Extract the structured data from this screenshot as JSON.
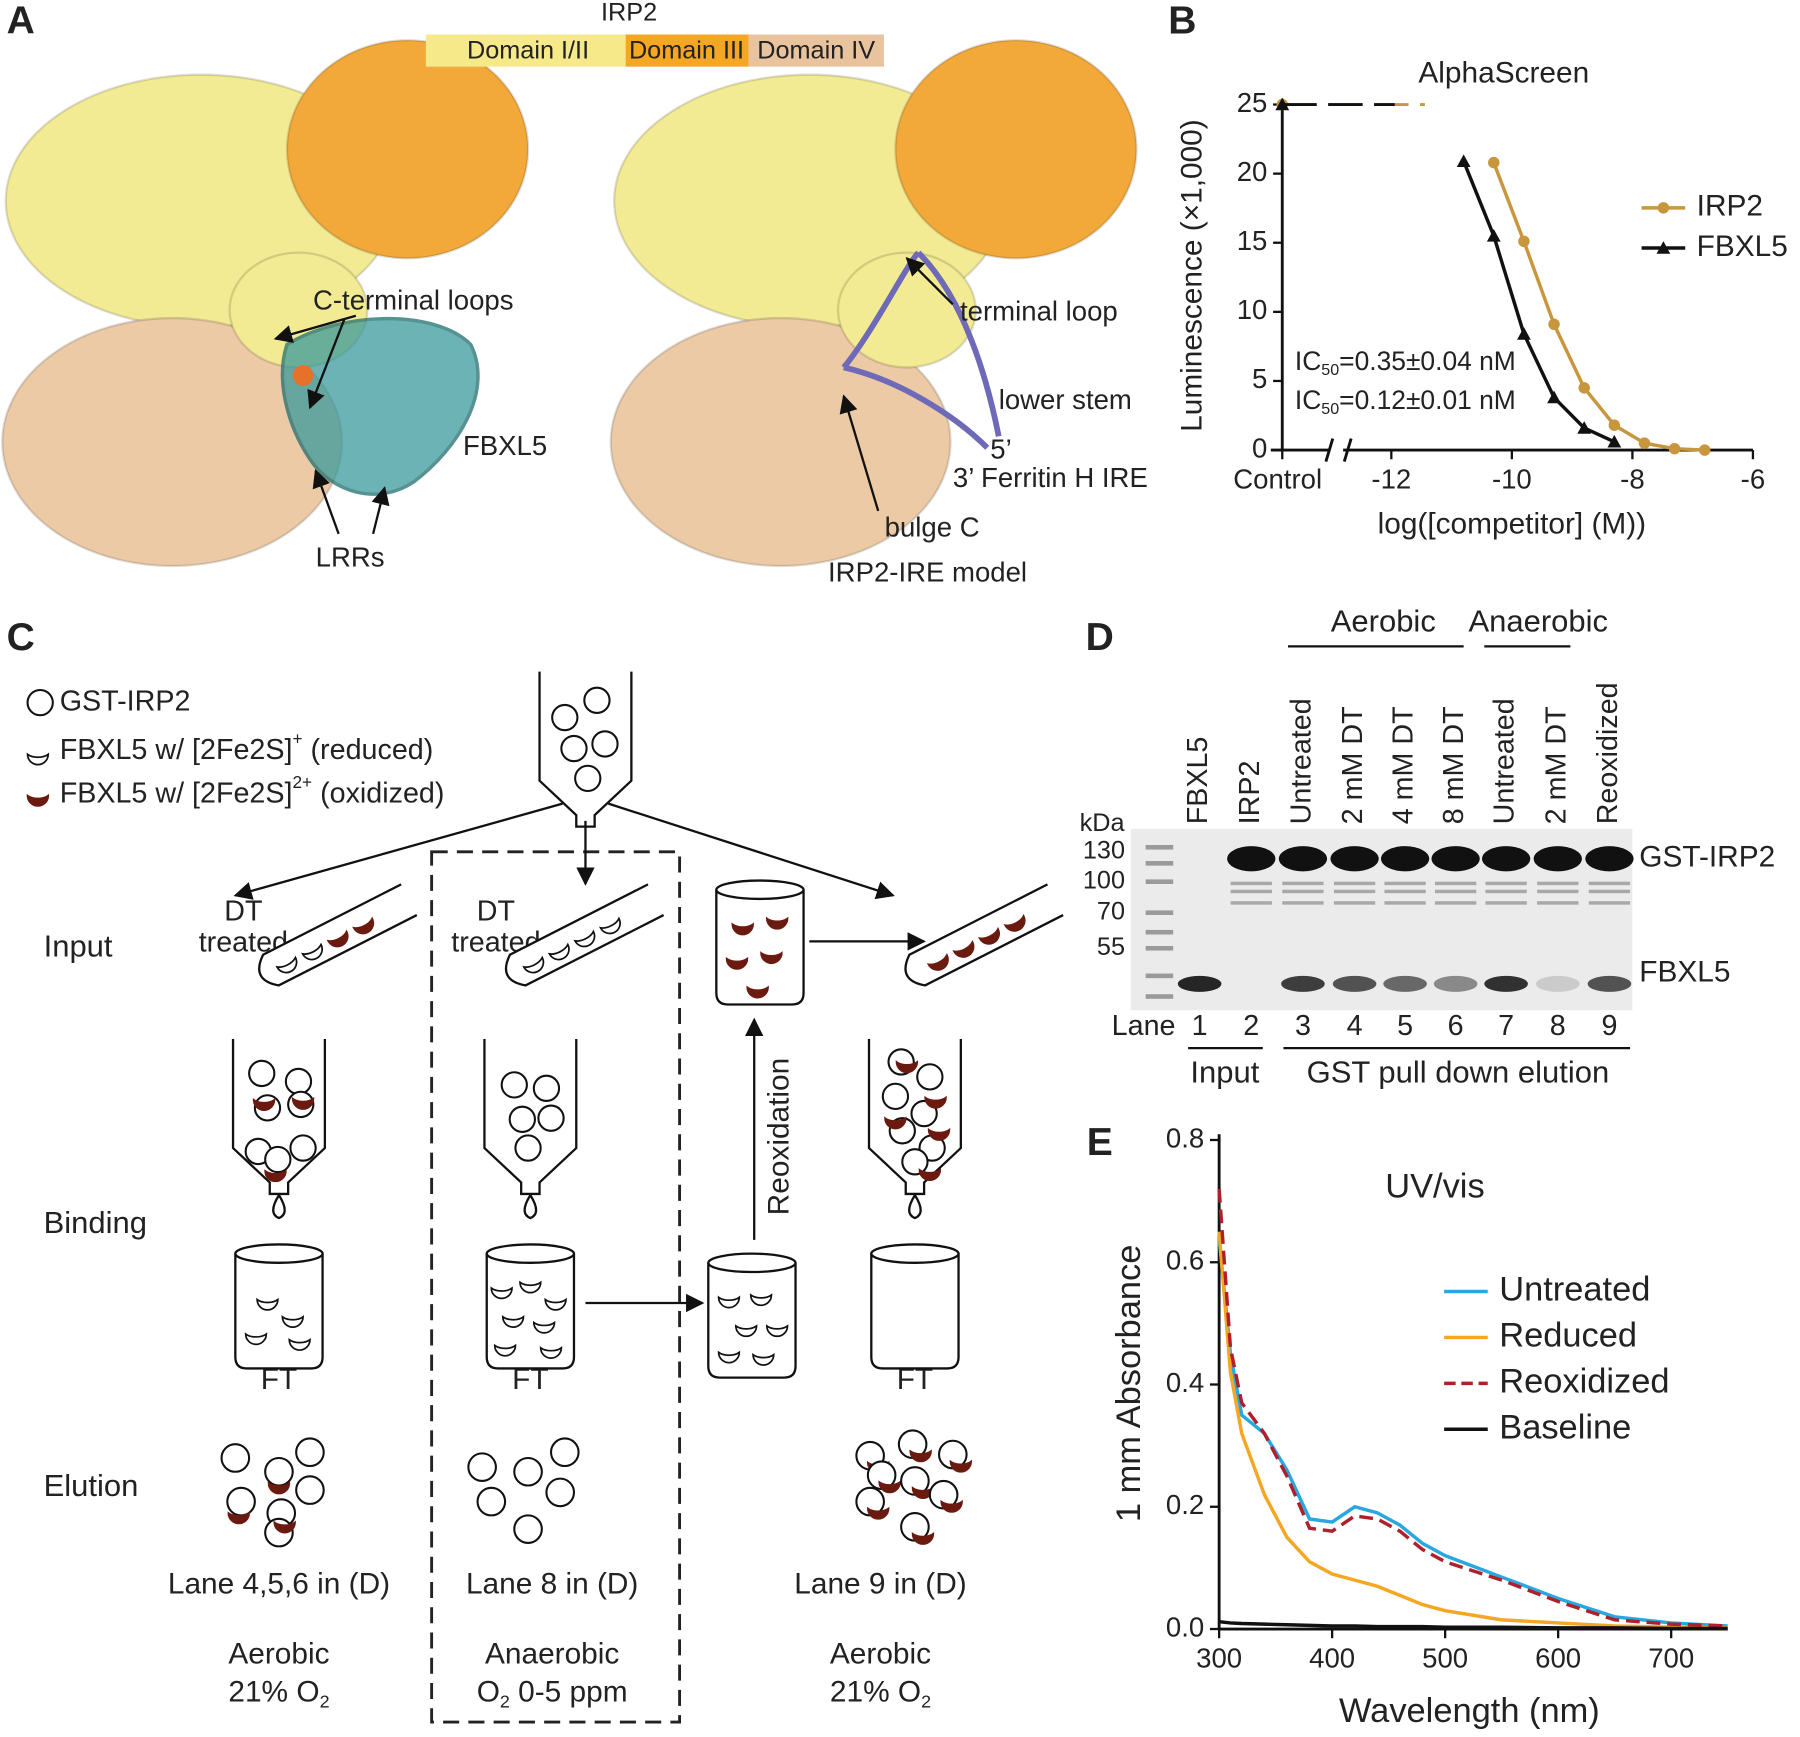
{
  "panel_labels": [
    "A",
    "B",
    "C",
    "D",
    "E"
  ],
  "panel_a": {
    "protein": "IRP2",
    "domains": [
      "Domain I/II",
      "Domain III",
      "Domain IV"
    ],
    "domain_colors": [
      "#f5e98a",
      "#f5a623",
      "#e8c39e"
    ],
    "left_labels": [
      "C-terminal loops",
      "FBXL5",
      "LRRs"
    ],
    "right_labels": [
      "terminal loop",
      "lower stem",
      "5’",
      "3’ Ferritin H IRE",
      "bulge C"
    ],
    "caption": "IRP2-IRE model"
  },
  "panel_c": {
    "legend": [
      {
        "before": "GST-IRP2"
      },
      {
        "before": "FBXL5 w/ [2Fe2S]",
        "sup": "+",
        "after": " (reduced)"
      },
      {
        "before": "FBXL5 w/ [2Fe2S]",
        "sup": "2+",
        "after": " (oxidized)"
      }
    ],
    "rows": [
      "Input",
      "Binding",
      "Elution"
    ],
    "dt_treated": [
      "DT",
      "treated"
    ],
    "ft": "FT",
    "reoxidation": "Reoxidation",
    "lanes": [
      "Lane 4,5,6 in (D)",
      "Lane 8 in (D)",
      "Lane 9 in (D)"
    ],
    "conditions": [
      {
        "name": "Aerobic",
        "before": "21% O",
        "sub": "2"
      },
      {
        "name": "Anaerobic",
        "before": "O",
        "sub": "2",
        "after": " 0-5 ppm"
      },
      {
        "name": "Aerobic",
        "before": "21% O",
        "sub": "2"
      }
    ]
  },
  "panel_d": {
    "groups": [
      "Aerobic",
      "Anaerobic"
    ],
    "lanes": [
      "FBXL5",
      "IRP2",
      "Untreated",
      "2 mM DT",
      "4 mM DT",
      "8 mM DT",
      "Untreated",
      "2 mM DT",
      "Reoxidized"
    ],
    "unit": "kDa",
    "markers": [
      "130",
      "100",
      "70",
      "55"
    ],
    "bands": [
      "GST-IRP2",
      "FBXL5"
    ],
    "lane_label": "Lane",
    "lane_numbers": [
      "1",
      "2",
      "3",
      "4",
      "5",
      "6",
      "7",
      "8",
      "9"
    ],
    "sections": [
      "Input",
      "GST pull down elution"
    ]
  },
  "chart_data": [
    {
      "type": "line",
      "title": "AlphaScreen",
      "xlabel": "log([competitor] (M))",
      "ylabel": "Luminescence (×1,000)",
      "control_label": "Control",
      "xlim": [
        -12.8,
        -6
      ],
      "xticks": [
        -12,
        -10,
        -8,
        -6
      ],
      "ylim": [
        0,
        25
      ],
      "yticks": [
        0,
        5,
        10,
        15,
        20,
        25
      ],
      "legend": "right",
      "series": [
        {
          "name": "IRP2",
          "color": "#c8963c",
          "marker": "circle",
          "control": 25,
          "x": [
            -10.3,
            -9.8,
            -9.3,
            -8.8,
            -8.3,
            -7.8,
            -7.3,
            -6.8
          ],
          "values": [
            20.8,
            15.1,
            9.1,
            4.5,
            1.8,
            0.5,
            0.1,
            0
          ]
        },
        {
          "name": "FBXL5",
          "color": "#111111",
          "marker": "triangle",
          "control": 25,
          "x": [
            -10.8,
            -10.3,
            -9.8,
            -9.3,
            -8.8,
            -8.3
          ],
          "values": [
            20.9,
            15.5,
            8.4,
            3.8,
            1.6,
            0.6
          ]
        }
      ],
      "annotations": [
        {
          "text": "IC",
          "sub": "50",
          "rest": "=0.35±0.04 nM",
          "color": "#c8963c"
        },
        {
          "text": "IC",
          "sub": "50",
          "rest": "=0.12±0.01 nM",
          "color": "#111111"
        }
      ]
    },
    {
      "type": "line",
      "title": "UV/vis",
      "xlabel": "Wavelength (nm)",
      "ylabel": "1 mm Absorbance",
      "xlim": [
        300,
        750
      ],
      "xticks": [
        300,
        400,
        500,
        600,
        700
      ],
      "ylim": [
        0,
        0.8
      ],
      "yticks": [
        {
          "value": 0,
          "label": "0.0"
        },
        0.2,
        0.4,
        0.6,
        0.8
      ],
      "legend": "upper right",
      "x": [
        300,
        310,
        320,
        340,
        360,
        380,
        400,
        420,
        440,
        460,
        480,
        500,
        550,
        600,
        650,
        700,
        750
      ],
      "series": [
        {
          "name": "Untreated",
          "color": "#29a8e0",
          "values": [
            0.64,
            0.45,
            0.35,
            0.32,
            0.26,
            0.18,
            0.175,
            0.2,
            0.19,
            0.17,
            0.14,
            0.12,
            0.085,
            0.05,
            0.02,
            0.01,
            0.005
          ]
        },
        {
          "name": "Reduced",
          "color": "#f5a623",
          "values": [
            0.65,
            0.42,
            0.32,
            0.22,
            0.15,
            0.11,
            0.09,
            0.08,
            0.07,
            0.055,
            0.04,
            0.03,
            0.015,
            0.01,
            0.005,
            0.003,
            0.002
          ]
        },
        {
          "name": "Reoxidized",
          "color": "#b0202a",
          "dash": true,
          "values": [
            0.72,
            0.46,
            0.37,
            0.32,
            0.25,
            0.165,
            0.16,
            0.185,
            0.18,
            0.16,
            0.13,
            0.11,
            0.08,
            0.045,
            0.015,
            0.008,
            0.005
          ]
        },
        {
          "name": "Baseline",
          "color": "#111111",
          "values": [
            0.012,
            0.01,
            0.009,
            0.008,
            0.007,
            0.006,
            0.005,
            0.005,
            0.004,
            0.004,
            0.004,
            0.003,
            0.003,
            0.002,
            0.002,
            0.001,
            0.001
          ]
        }
      ]
    }
  ]
}
